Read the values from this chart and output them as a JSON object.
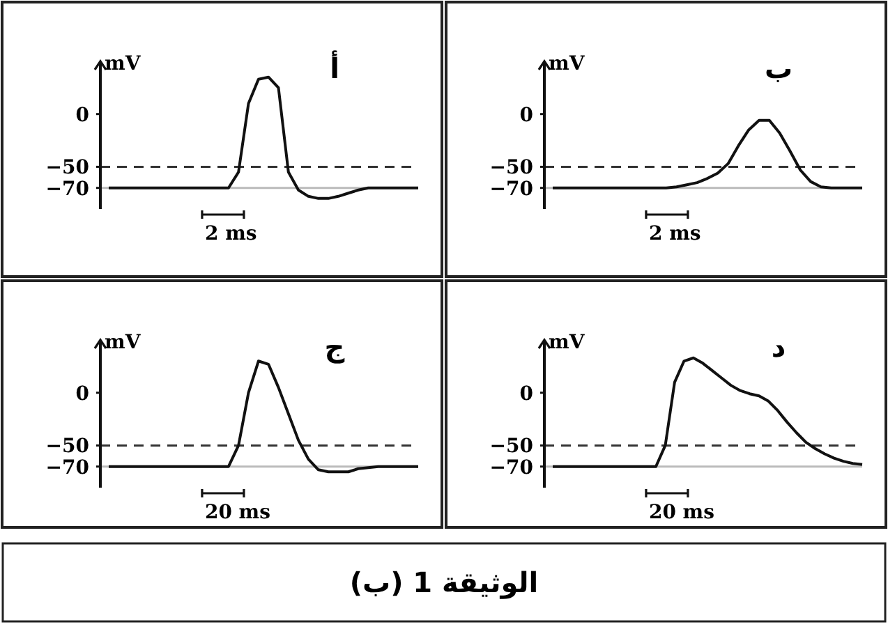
{
  "chart_data": [
    {
      "type": "line",
      "title": "أ",
      "ylabel": "mV",
      "categories": [
        null,
        null,
        null,
        null,
        null,
        null,
        null,
        null,
        null,
        null,
        null,
        null,
        null,
        null,
        null,
        null,
        null,
        null,
        null,
        null,
        null,
        null,
        null,
        null,
        null,
        null,
        null,
        null,
        null,
        null,
        null,
        null
      ],
      "series": [
        {
          "color": "#111111",
          "values": [
            -70,
            -70,
            -70,
            -70,
            -70,
            -70,
            -70,
            -70,
            -70,
            -70,
            -70,
            -70,
            -70,
            -55,
            10,
            33,
            35,
            25,
            -55,
            -72,
            -78,
            -80,
            -80,
            -78,
            -75,
            -72,
            -70,
            -70,
            -70,
            -70,
            -70,
            -70
          ]
        }
      ],
      "ylim": [
        -90,
        50
      ],
      "yticks": [
        0,
        -50,
        -70
      ],
      "tick_labels": "y",
      "ref_lines": [
        {
          "axis": "y",
          "value": -50,
          "color": "#333333",
          "line_style": "dashed"
        },
        {
          "axis": "y",
          "value": -70,
          "color": "#bbbbbb",
          "line_style": "solid"
        }
      ],
      "annotations": [
        "2 ms"
      ]
    },
    {
      "type": "line",
      "title": "ب",
      "ylabel": "mV",
      "categories": [
        null,
        null,
        null,
        null,
        null,
        null,
        null,
        null,
        null,
        null,
        null,
        null,
        null,
        null,
        null,
        null,
        null,
        null,
        null,
        null,
        null,
        null,
        null,
        null,
        null,
        null,
        null,
        null,
        null,
        null,
        null
      ],
      "series": [
        {
          "color": "#111111",
          "values": [
            -70,
            -70,
            -70,
            -70,
            -70,
            -70,
            -70,
            -70,
            -70,
            -70,
            -70,
            -70,
            -69,
            -67,
            -65,
            -61,
            -56,
            -47,
            -30,
            -15,
            -6,
            -6,
            -18,
            -35,
            -53,
            -64,
            -69,
            -70,
            -70,
            -70,
            -70
          ]
        }
      ],
      "ylim": [
        -90,
        50
      ],
      "yticks": [
        0,
        -50,
        -70
      ],
      "tick_labels": "y",
      "ref_lines": [
        {
          "axis": "y",
          "value": -50,
          "color": "#333333",
          "line_style": "dashed"
        },
        {
          "axis": "y",
          "value": -70,
          "color": "#bbbbbb",
          "line_style": "solid"
        }
      ],
      "annotations": [
        "2 ms"
      ]
    },
    {
      "type": "line",
      "title": "ج",
      "ylabel": "mV",
      "categories": [
        null,
        null,
        null,
        null,
        null,
        null,
        null,
        null,
        null,
        null,
        null,
        null,
        null,
        null,
        null,
        null,
        null,
        null,
        null,
        null,
        null,
        null,
        null,
        null,
        null,
        null,
        null,
        null,
        null,
        null,
        null,
        null
      ],
      "series": [
        {
          "color": "#111111",
          "values": [
            -70,
            -70,
            -70,
            -70,
            -70,
            -70,
            -70,
            -70,
            -70,
            -70,
            -70,
            -70,
            -70,
            -50,
            0,
            30,
            27,
            5,
            -20,
            -45,
            -63,
            -73,
            -75,
            -75,
            -75,
            -72,
            -71,
            -70,
            -70,
            -70,
            -70,
            -70
          ]
        }
      ],
      "ylim": [
        -90,
        50
      ],
      "yticks": [
        0,
        -50,
        -70
      ],
      "tick_labels": "y",
      "ref_lines": [
        {
          "axis": "y",
          "value": -50,
          "color": "#333333",
          "line_style": "dashed"
        },
        {
          "axis": "y",
          "value": -70,
          "color": "#bbbbbb",
          "line_style": "solid"
        }
      ],
      "annotations": [
        "20 ms"
      ]
    },
    {
      "type": "line",
      "title": "د",
      "ylabel": "mV",
      "categories": [
        null,
        null,
        null,
        null,
        null,
        null,
        null,
        null,
        null,
        null,
        null,
        null,
        null,
        null,
        null,
        null,
        null,
        null,
        null,
        null,
        null,
        null,
        null,
        null,
        null,
        null,
        null,
        null,
        null,
        null,
        null,
        null,
        null,
        null
      ],
      "series": [
        {
          "color": "#111111",
          "values": [
            -70,
            -70,
            -70,
            -70,
            -70,
            -70,
            -70,
            -70,
            -70,
            -70,
            -70,
            -70,
            -50,
            10,
            30,
            33,
            28,
            21,
            14,
            7,
            2,
            -1,
            -3,
            -8,
            -17,
            -28,
            -38,
            -47,
            -53,
            -58,
            -62,
            -65,
            -67,
            -68
          ]
        }
      ],
      "ylim": [
        -90,
        50
      ],
      "yticks": [
        0,
        -50,
        -70
      ],
      "tick_labels": "y",
      "ref_lines": [
        {
          "axis": "y",
          "value": -50,
          "color": "#333333",
          "line_style": "dashed"
        },
        {
          "axis": "y",
          "value": -70,
          "color": "#bbbbbb",
          "line_style": "solid"
        }
      ],
      "annotations": [
        "20 ms"
      ]
    },
    {
      "type": "other",
      "title": "الوثيقة 1 (ب)"
    }
  ]
}
